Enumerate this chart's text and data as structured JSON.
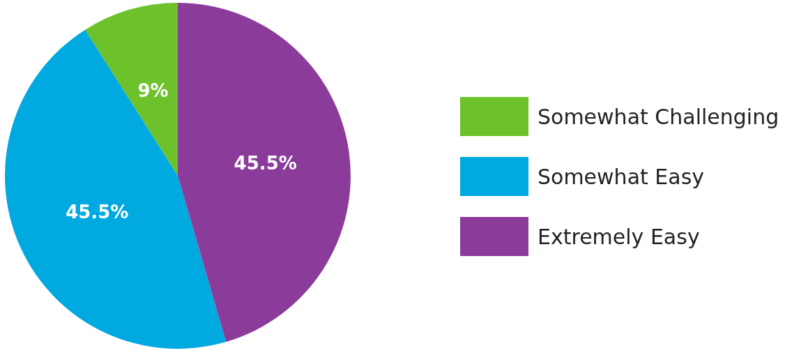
{
  "chart_data": {
    "type": "pie",
    "categories": [
      "Somewhat Challenging",
      "Somewhat Easy",
      "Extremely Easy"
    ],
    "values": [
      9,
      45.5,
      45.5
    ],
    "colors": [
      "#6dc22b",
      "#00a9e0",
      "#8b3c9a"
    ],
    "value_labels": [
      "9%",
      "45.5%",
      "45.5%"
    ],
    "legend": "right"
  }
}
